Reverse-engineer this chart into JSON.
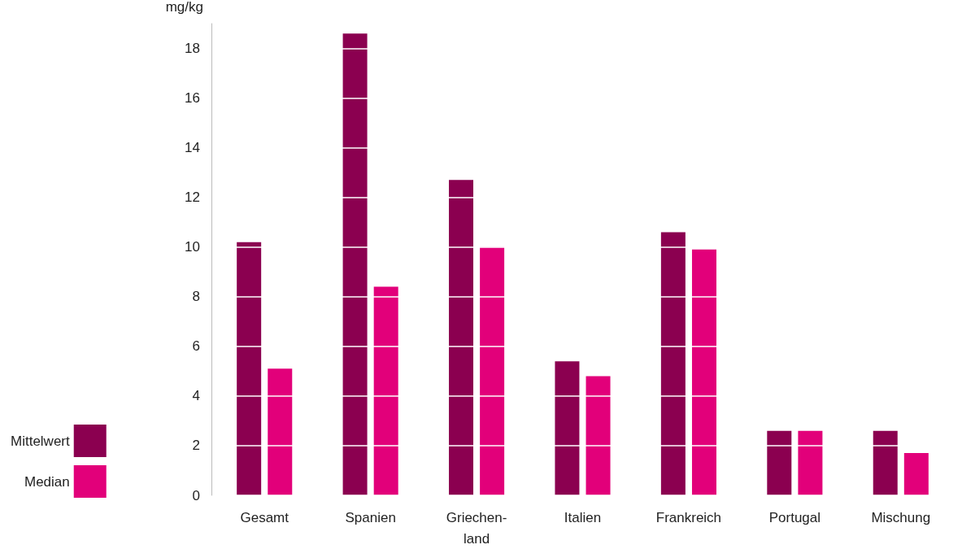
{
  "chart_data": {
    "type": "bar",
    "ylabel": "mg/kg",
    "categories": [
      "Gesamt",
      "Spanien",
      "Griechen-\nland",
      "Italien",
      "Frankreich",
      "Portugal",
      "Mischung"
    ],
    "series": [
      {
        "name": "Mittelwert",
        "color": "#8b0050",
        "values": [
          10.2,
          18.6,
          12.7,
          5.4,
          10.6,
          2.6,
          2.6
        ]
      },
      {
        "name": "Median",
        "color": "#e2007a",
        "values": [
          5.1,
          8.4,
          10.0,
          4.8,
          9.9,
          2.6,
          1.7
        ]
      }
    ],
    "ylim": [
      0,
      19
    ],
    "yticks": [
      0,
      2,
      4,
      6,
      8,
      10,
      12,
      14,
      16,
      18
    ],
    "grid": "y",
    "legend": "bottom left"
  }
}
